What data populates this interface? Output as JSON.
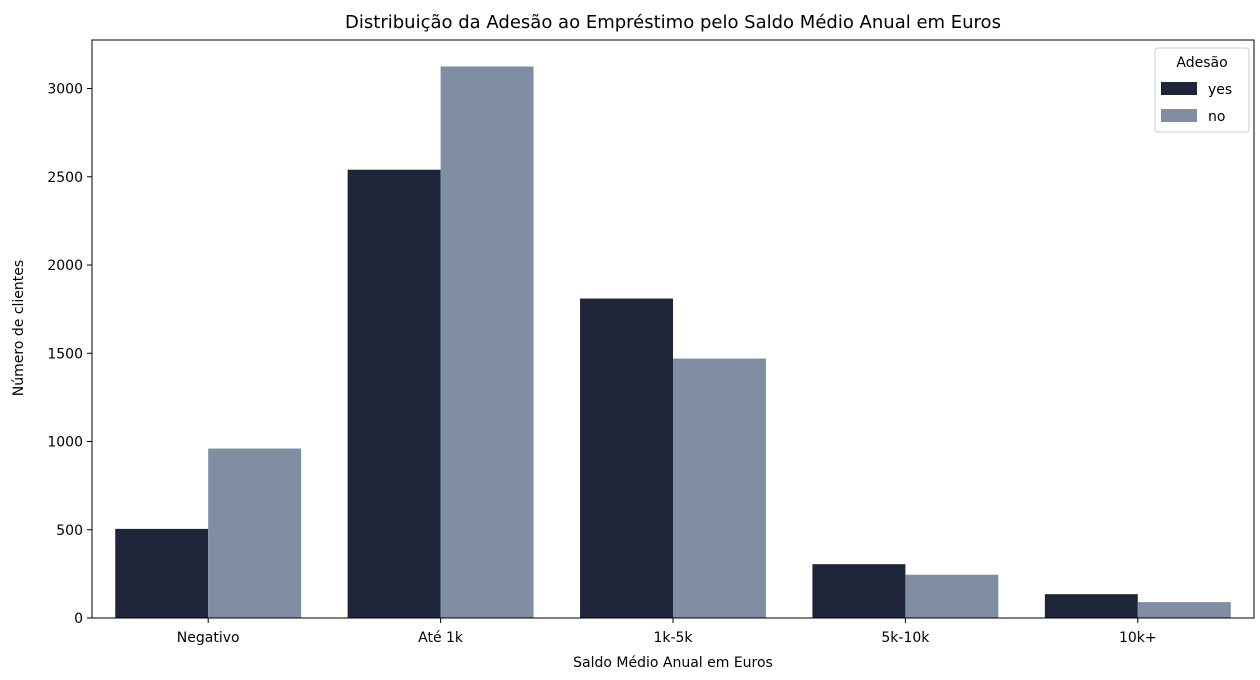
{
  "chart_data": {
    "type": "bar",
    "title": "Distribuição da Adesão ao Empréstimo pelo Saldo Médio Anual em Euros",
    "xlabel": "Saldo Médio Anual em Euros",
    "ylabel": "Número de clientes",
    "categories": [
      "Negativo",
      "Até 1k",
      "1k-5k",
      "5k-10k",
      "10k+"
    ],
    "series": [
      {
        "name": "yes",
        "color": "#1f2538",
        "values": [
          505,
          2540,
          1810,
          305,
          135
        ]
      },
      {
        "name": "no",
        "color": "#7f8ea3",
        "values": [
          960,
          3125,
          1470,
          245,
          90
        ]
      }
    ],
    "ylim": [
      0,
      3275
    ],
    "yticks": [
      0,
      500,
      1000,
      1500,
      2000,
      2500,
      3000
    ],
    "grid": false,
    "legend": {
      "title": "Adesão",
      "position": "top-right"
    }
  }
}
